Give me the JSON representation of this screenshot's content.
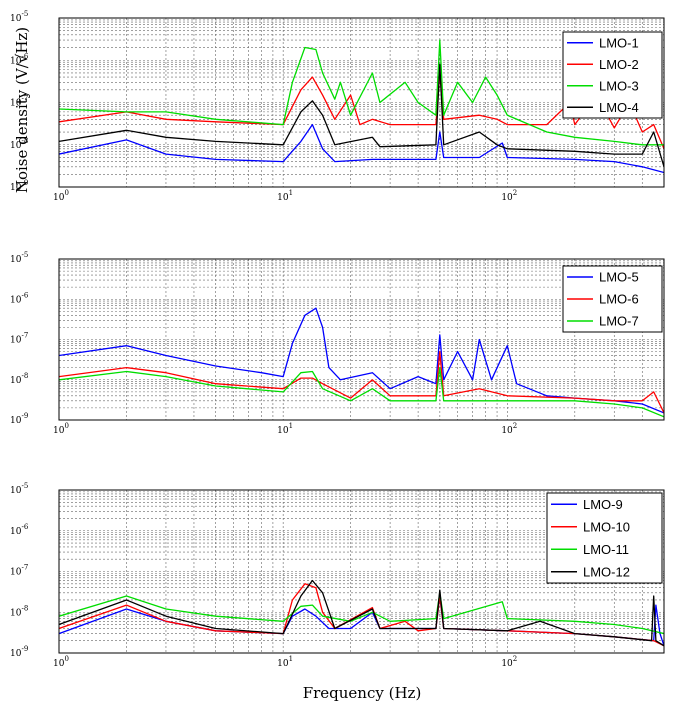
{
  "figure": {
    "ylabel": "Noise density (V/√Hz)",
    "xlabel": "Frequency (Hz)"
  },
  "chart_data": [
    {
      "type": "line",
      "xscale": "log",
      "yscale": "log",
      "xlim": [
        1,
        500
      ],
      "ylim": [
        1e-09,
        1e-05
      ],
      "x_tick_labels": [
        "10^0",
        "10^1",
        "10^2"
      ],
      "y_tick_labels": [
        "10^-9",
        "10^-8",
        "10^-7",
        "10^-6",
        "10^-5"
      ],
      "grid": true,
      "legend_position": "top-right",
      "series": [
        {
          "name": "LMO-1",
          "color": "#0000ff",
          "points": [
            [
              1,
              6e-09
            ],
            [
              2,
              1.3e-08
            ],
            [
              3,
              6e-09
            ],
            [
              5,
              4.5e-09
            ],
            [
              10,
              4e-09
            ],
            [
              12,
              1.2e-08
            ],
            [
              13.5,
              3e-08
            ],
            [
              15,
              8e-09
            ],
            [
              17,
              4e-09
            ],
            [
              25,
              4.5e-09
            ],
            [
              48,
              4.5e-09
            ],
            [
              50,
              2e-08
            ],
            [
              52,
              5e-09
            ],
            [
              75,
              5e-09
            ],
            [
              95,
              1.1e-08
            ],
            [
              100,
              5e-09
            ],
            [
              200,
              4.5e-09
            ],
            [
              300,
              4e-09
            ],
            [
              400,
              3e-09
            ],
            [
              500,
              2.2e-09
            ]
          ]
        },
        {
          "name": "LMO-2",
          "color": "#ff0000",
          "points": [
            [
              1,
              3.5e-08
            ],
            [
              2,
              6e-08
            ],
            [
              3,
              4e-08
            ],
            [
              5,
              3.5e-08
            ],
            [
              10,
              3e-08
            ],
            [
              12,
              2e-07
            ],
            [
              13.5,
              4e-07
            ],
            [
              15,
              1.5e-07
            ],
            [
              17,
              4e-08
            ],
            [
              20,
              1.5e-07
            ],
            [
              22,
              3e-08
            ],
            [
              25,
              4e-08
            ],
            [
              30,
              3e-08
            ],
            [
              48,
              3e-08
            ],
            [
              50,
              5e-07
            ],
            [
              52,
              4e-08
            ],
            [
              75,
              5e-08
            ],
            [
              90,
              4e-08
            ],
            [
              100,
              3e-08
            ],
            [
              150,
              3e-08
            ],
            [
              190,
              1e-07
            ],
            [
              200,
              3e-08
            ],
            [
              250,
              1.5e-07
            ],
            [
              300,
              2.5e-08
            ],
            [
              350,
              1e-07
            ],
            [
              400,
              2e-08
            ],
            [
              450,
              3e-08
            ],
            [
              500,
              8e-09
            ]
          ]
        },
        {
          "name": "LMO-3",
          "color": "#00dd00",
          "points": [
            [
              1,
              7e-08
            ],
            [
              2,
              6e-08
            ],
            [
              3,
              6e-08
            ],
            [
              5,
              4e-08
            ],
            [
              10,
              3e-08
            ],
            [
              11,
              3e-07
            ],
            [
              12.5,
              2e-06
            ],
            [
              14,
              1.8e-06
            ],
            [
              15,
              5e-07
            ],
            [
              17,
              1.2e-07
            ],
            [
              18,
              3e-07
            ],
            [
              20,
              5e-08
            ],
            [
              25,
              5e-07
            ],
            [
              27,
              1e-07
            ],
            [
              35,
              3e-07
            ],
            [
              40,
              1e-07
            ],
            [
              48,
              5e-08
            ],
            [
              50,
              3e-06
            ],
            [
              52,
              5e-08
            ],
            [
              60,
              3e-07
            ],
            [
              70,
              1e-07
            ],
            [
              80,
              4e-07
            ],
            [
              90,
              1.5e-07
            ],
            [
              100,
              5e-08
            ],
            [
              150,
              2e-08
            ],
            [
              200,
              1.5e-08
            ],
            [
              300,
              1.2e-08
            ],
            [
              400,
              1e-08
            ],
            [
              500,
              1e-08
            ]
          ]
        },
        {
          "name": "LMO-4",
          "color": "#000000",
          "points": [
            [
              1,
              1.2e-08
            ],
            [
              2,
              2.2e-08
            ],
            [
              3,
              1.5e-08
            ],
            [
              5,
              1.2e-08
            ],
            [
              10,
              1e-08
            ],
            [
              12,
              6e-08
            ],
            [
              13.5,
              1.1e-07
            ],
            [
              15,
              5e-08
            ],
            [
              17,
              1e-08
            ],
            [
              25,
              1.5e-08
            ],
            [
              27,
              9e-09
            ],
            [
              48,
              1e-08
            ],
            [
              50,
              8e-07
            ],
            [
              52,
              1e-08
            ],
            [
              75,
              2e-08
            ],
            [
              90,
              1e-08
            ],
            [
              100,
              8e-09
            ],
            [
              200,
              7e-09
            ],
            [
              300,
              6e-09
            ],
            [
              400,
              6e-09
            ],
            [
              450,
              2e-08
            ],
            [
              500,
              3e-09
            ]
          ]
        }
      ]
    },
    {
      "type": "line",
      "xscale": "log",
      "yscale": "log",
      "xlim": [
        1,
        500
      ],
      "ylim": [
        1e-09,
        1e-05
      ],
      "x_tick_labels": [
        "10^0",
        "10^1",
        "10^2"
      ],
      "y_tick_labels": [
        "10^-9",
        "10^-8",
        "10^-7",
        "10^-6",
        "10^-5"
      ],
      "grid": true,
      "legend_position": "top-right",
      "series": [
        {
          "name": "LMO-5",
          "color": "#0000ff",
          "points": [
            [
              1,
              4e-08
            ],
            [
              2,
              7e-08
            ],
            [
              3,
              4e-08
            ],
            [
              5,
              2.2e-08
            ],
            [
              8,
              1.5e-08
            ],
            [
              10,
              1.2e-08
            ],
            [
              11,
              8e-08
            ],
            [
              12.5,
              4e-07
            ],
            [
              14,
              6e-07
            ],
            [
              15,
              2e-07
            ],
            [
              16,
              2e-08
            ],
            [
              18,
              1e-08
            ],
            [
              25,
              1.5e-08
            ],
            [
              30,
              6e-09
            ],
            [
              40,
              1.2e-08
            ],
            [
              48,
              8e-09
            ],
            [
              50,
              1.3e-07
            ],
            [
              52,
              1e-08
            ],
            [
              60,
              5e-08
            ],
            [
              70,
              1e-08
            ],
            [
              75,
              1e-07
            ],
            [
              85,
              1e-08
            ],
            [
              100,
              7e-08
            ],
            [
              110,
              8e-09
            ],
            [
              150,
              4e-09
            ],
            [
              200,
              3.5e-09
            ],
            [
              300,
              3e-09
            ],
            [
              400,
              2.5e-09
            ],
            [
              500,
              1.5e-09
            ]
          ]
        },
        {
          "name": "LMO-6",
          "color": "#ff0000",
          "points": [
            [
              1,
              1.2e-08
            ],
            [
              2,
              2e-08
            ],
            [
              3,
              1.5e-08
            ],
            [
              5,
              8e-09
            ],
            [
              10,
              6e-09
            ],
            [
              12,
              1.1e-08
            ],
            [
              13.5,
              1.1e-08
            ],
            [
              15,
              8e-09
            ],
            [
              20,
              3.5e-09
            ],
            [
              25,
              1e-08
            ],
            [
              30,
              4e-09
            ],
            [
              48,
              4e-09
            ],
            [
              50,
              5e-08
            ],
            [
              52,
              4e-09
            ],
            [
              75,
              6e-09
            ],
            [
              100,
              4e-09
            ],
            [
              200,
              3.5e-09
            ],
            [
              300,
              3e-09
            ],
            [
              400,
              3e-09
            ],
            [
              450,
              5e-09
            ],
            [
              500,
              1.5e-09
            ]
          ]
        },
        {
          "name": "LMO-7",
          "color": "#00dd00",
          "points": [
            [
              1,
              1e-08
            ],
            [
              2,
              1.6e-08
            ],
            [
              3,
              1.2e-08
            ],
            [
              5,
              7e-09
            ],
            [
              10,
              5e-09
            ],
            [
              12,
              1.5e-08
            ],
            [
              13.5,
              1.6e-08
            ],
            [
              15,
              6e-09
            ],
            [
              20,
              3e-09
            ],
            [
              25,
              6e-09
            ],
            [
              30,
              3e-09
            ],
            [
              48,
              3e-09
            ],
            [
              50,
              2e-08
            ],
            [
              52,
              3e-09
            ],
            [
              100,
              3e-09
            ],
            [
              200,
              3e-09
            ],
            [
              300,
              2.5e-09
            ],
            [
              400,
              2e-09
            ],
            [
              500,
              1.2e-09
            ]
          ]
        }
      ]
    },
    {
      "type": "line",
      "xscale": "log",
      "yscale": "log",
      "xlim": [
        1,
        500
      ],
      "ylim": [
        1e-09,
        1e-05
      ],
      "x_tick_labels": [
        "10^0",
        "10^1",
        "10^2"
      ],
      "y_tick_labels": [
        "10^-9",
        "10^-8",
        "10^-7",
        "10^-6",
        "10^-5"
      ],
      "grid": true,
      "legend_position": "top-right",
      "series": [
        {
          "name": "LMO-9",
          "color": "#0000ff",
          "points": [
            [
              1,
              3e-09
            ],
            [
              2,
              1.2e-08
            ],
            [
              3,
              6e-09
            ],
            [
              5,
              3.5e-09
            ],
            [
              10,
              3e-09
            ],
            [
              11,
              8e-09
            ],
            [
              12.5,
              1.2e-08
            ],
            [
              14,
              8e-09
            ],
            [
              16,
              4e-09
            ],
            [
              20,
              4e-09
            ],
            [
              25,
              1e-08
            ],
            [
              27,
              4e-09
            ],
            [
              48,
              4e-09
            ],
            [
              50,
              2.5e-08
            ],
            [
              52,
              4e-09
            ],
            [
              100,
              3.5e-09
            ],
            [
              200,
              3e-09
            ],
            [
              300,
              2.5e-09
            ],
            [
              450,
              2e-09
            ],
            [
              460,
              1.5e-08
            ],
            [
              480,
              3e-09
            ],
            [
              500,
              1.5e-09
            ]
          ]
        },
        {
          "name": "LMO-10",
          "color": "#ff0000",
          "points": [
            [
              1,
              4e-09
            ],
            [
              2,
              1.5e-08
            ],
            [
              3,
              6e-09
            ],
            [
              5,
              3.5e-09
            ],
            [
              10,
              3e-09
            ],
            [
              11,
              2e-08
            ],
            [
              12.5,
              5e-08
            ],
            [
              14,
              4e-08
            ],
            [
              15,
              1e-08
            ],
            [
              17,
              4e-09
            ],
            [
              25,
              1.3e-08
            ],
            [
              27,
              4e-09
            ],
            [
              35,
              6e-09
            ],
            [
              40,
              3.5e-09
            ],
            [
              48,
              4e-09
            ],
            [
              50,
              2.5e-08
            ],
            [
              52,
              4e-09
            ],
            [
              100,
              3.5e-09
            ],
            [
              200,
              3e-09
            ],
            [
              300,
              2.5e-09
            ],
            [
              450,
              2e-09
            ],
            [
              500,
              1.5e-09
            ]
          ]
        },
        {
          "name": "LMO-11",
          "color": "#00dd00",
          "points": [
            [
              1,
              8e-09
            ],
            [
              2,
              2.5e-08
            ],
            [
              3,
              1.2e-08
            ],
            [
              5,
              8e-09
            ],
            [
              10,
              6e-09
            ],
            [
              12,
              1.4e-08
            ],
            [
              13.5,
              1.5e-08
            ],
            [
              15,
              8e-09
            ],
            [
              20,
              6e-09
            ],
            [
              25,
              1e-08
            ],
            [
              30,
              6e-09
            ],
            [
              48,
              7e-09
            ],
            [
              50,
              3e-08
            ],
            [
              52,
              7e-09
            ],
            [
              95,
              1.8e-08
            ],
            [
              100,
              7e-09
            ],
            [
              200,
              6e-09
            ],
            [
              300,
              5e-09
            ],
            [
              400,
              4e-09
            ],
            [
              500,
              3e-09
            ]
          ]
        },
        {
          "name": "LMO-12",
          "color": "#000000",
          "points": [
            [
              1,
              5e-09
            ],
            [
              2,
              2e-08
            ],
            [
              3,
              8e-09
            ],
            [
              5,
              4e-09
            ],
            [
              10,
              3e-09
            ],
            [
              12,
              2.5e-08
            ],
            [
              13.5,
              6e-08
            ],
            [
              15,
              3e-08
            ],
            [
              17,
              4e-09
            ],
            [
              25,
              1.2e-08
            ],
            [
              27,
              4e-09
            ],
            [
              48,
              4e-09
            ],
            [
              50,
              3.5e-08
            ],
            [
              52,
              4e-09
            ],
            [
              100,
              3.5e-09
            ],
            [
              140,
              6e-09
            ],
            [
              200,
              3e-09
            ],
            [
              300,
              2.5e-09
            ],
            [
              440,
              2e-09
            ],
            [
              450,
              2.5e-08
            ],
            [
              460,
              2e-09
            ],
            [
              500,
              1.5e-09
            ]
          ]
        }
      ]
    }
  ]
}
